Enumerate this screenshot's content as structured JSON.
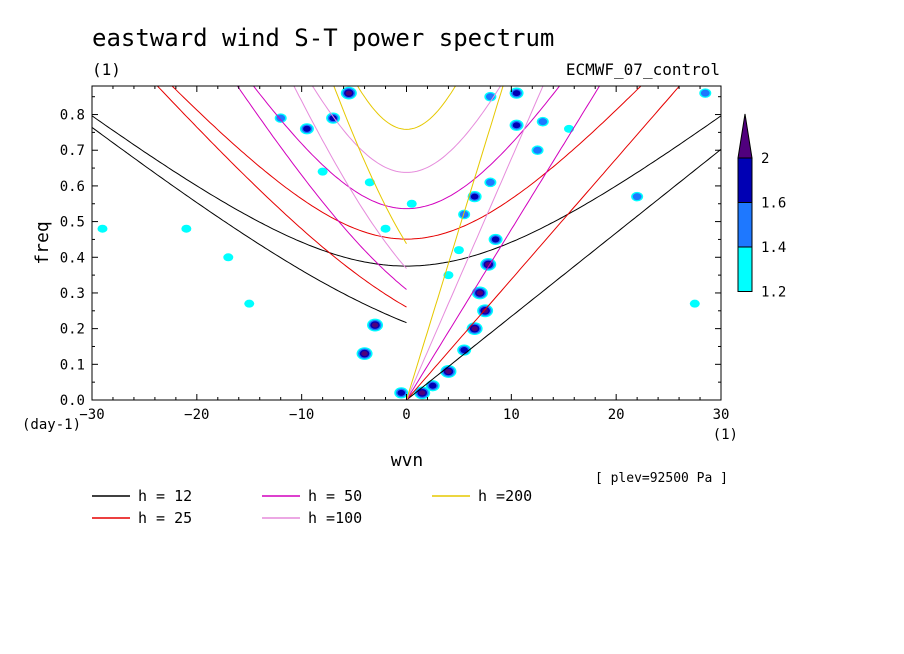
{
  "chart_data": {
    "type": "heatmap",
    "title": "eastward wind S-T power spectrum",
    "subtitle_left": "(1)",
    "subtitle_right": "ECMWF_07_control",
    "xlabel": "wvn",
    "ylabel": "freq",
    "x_unit": "(1)",
    "y_unit": "(day-1)",
    "xlim": [
      -30,
      30
    ],
    "ylim": [
      0,
      0.88
    ],
    "xticks": [
      -30,
      -20,
      -10,
      0,
      10,
      20,
      30
    ],
    "yticks": [
      0.0,
      0.1,
      0.2,
      0.3,
      0.4,
      0.5,
      0.6,
      0.7,
      0.8
    ],
    "ytick_labels": [
      "0.0",
      "0.1",
      "0.2",
      "0.3",
      "0.4",
      "0.5",
      "0.6",
      "0.7",
      "0.8"
    ],
    "annotation": "[ plev=92500 Pa ]",
    "colorbar": {
      "levels": [
        1.2,
        1.4,
        1.6,
        2
      ],
      "labels": [
        "1.2",
        "1.4",
        "1.6",
        "2"
      ],
      "colors": [
        "#00ffff",
        "#1e78ff",
        "#0000b4",
        "#50007d"
      ]
    },
    "contour_blobs": [
      {
        "x": 7.5,
        "y": 0.25,
        "level": 3
      },
      {
        "x": 7.0,
        "y": 0.3,
        "level": 3
      },
      {
        "x": 7.8,
        "y": 0.38,
        "level": 3
      },
      {
        "x": 8.5,
        "y": 0.45,
        "level": 2
      },
      {
        "x": 6.5,
        "y": 0.2,
        "level": 3
      },
      {
        "x": 5.5,
        "y": 0.14,
        "level": 2
      },
      {
        "x": 4.0,
        "y": 0.08,
        "level": 3
      },
      {
        "x": 2.5,
        "y": 0.04,
        "level": 2
      },
      {
        "x": 1.5,
        "y": 0.02,
        "level": 3
      },
      {
        "x": -0.5,
        "y": 0.02,
        "level": 2
      },
      {
        "x": -4.0,
        "y": 0.13,
        "level": 3
      },
      {
        "x": -3.0,
        "y": 0.21,
        "level": 3
      },
      {
        "x": -5.5,
        "y": 0.86,
        "level": 3
      },
      {
        "x": -7.0,
        "y": 0.79,
        "level": 2
      },
      {
        "x": -9.5,
        "y": 0.76,
        "level": 2
      },
      {
        "x": -12.0,
        "y": 0.79,
        "level": 1
      },
      {
        "x": 6.5,
        "y": 0.57,
        "level": 2
      },
      {
        "x": 8.0,
        "y": 0.61,
        "level": 1
      },
      {
        "x": 10.5,
        "y": 0.77,
        "level": 2
      },
      {
        "x": 13.0,
        "y": 0.78,
        "level": 1
      },
      {
        "x": 12.5,
        "y": 0.7,
        "level": 1
      },
      {
        "x": 10.5,
        "y": 0.86,
        "level": 2
      },
      {
        "x": 8.0,
        "y": 0.85,
        "level": 1
      },
      {
        "x": 5.5,
        "y": 0.52,
        "level": 1
      },
      {
        "x": 4.0,
        "y": 0.35,
        "level": 0
      },
      {
        "x": 5.0,
        "y": 0.42,
        "level": 0
      },
      {
        "x": 15.5,
        "y": 0.76,
        "level": 0
      },
      {
        "x": 22.0,
        "y": 0.57,
        "level": 1
      },
      {
        "x": 28.5,
        "y": 0.86,
        "level": 1
      },
      {
        "x": 27.5,
        "y": 0.27,
        "level": 0
      },
      {
        "x": -15.0,
        "y": 0.27,
        "level": 0
      },
      {
        "x": -17.0,
        "y": 0.4,
        "level": 0
      },
      {
        "x": -21.0,
        "y": 0.48,
        "level": 0
      },
      {
        "x": -29.0,
        "y": 0.48,
        "level": 0
      },
      {
        "x": -8.0,
        "y": 0.64,
        "level": 0
      },
      {
        "x": -2.0,
        "y": 0.48,
        "level": 0
      },
      {
        "x": -3.5,
        "y": 0.61,
        "level": 0
      },
      {
        "x": 0.5,
        "y": 0.55,
        "level": 0
      }
    ],
    "series": [
      {
        "name": "h = 12",
        "color": "#000000",
        "h": 12
      },
      {
        "name": "h = 25",
        "color": "#e60000",
        "h": 25
      },
      {
        "name": "h = 50",
        "color": "#d200be",
        "h": 50
      },
      {
        "name": "h =100",
        "color": "#e68cdc",
        "h": 100
      },
      {
        "name": "h =200",
        "color": "#e6c800",
        "h": 200
      }
    ]
  }
}
